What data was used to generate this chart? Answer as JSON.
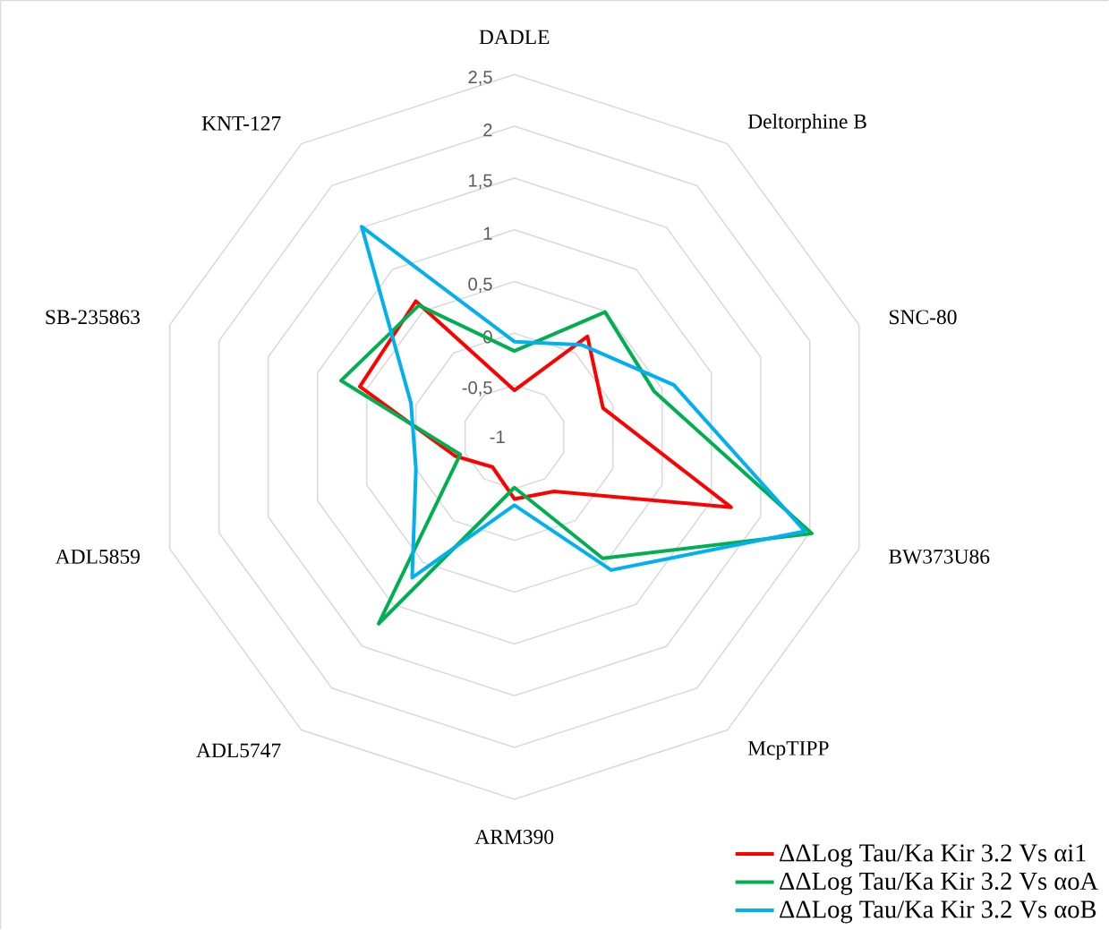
{
  "chart_data": {
    "type": "radar",
    "categories": [
      "DADLE",
      "Deltorphine B",
      "SNC-80",
      "BW373U86",
      "McpTIPP",
      "ARM390",
      "ADL5747",
      "ADL5859",
      "SB-235863",
      "KNT-127"
    ],
    "series": [
      {
        "name": "ΔΔLog Tau/Ka Kir 3.2 Vs αi1",
        "color": "#ff0000",
        "values": [
          -0.55,
          0.2,
          -0.1,
          1.2,
          -0.35,
          -0.4,
          -0.64,
          -0.4,
          0.57,
          0.62
        ]
      },
      {
        "name": "ΔΔLog Tau/Ka Kir 3.2 Vs αoA",
        "color": "#00b050",
        "values": [
          -0.17,
          0.49,
          0.42,
          2.02,
          0.45,
          -0.51,
          1.23,
          -0.45,
          0.76,
          0.57
        ]
      },
      {
        "name": "ΔΔLog Tau/Ka Kir 3.2 Vs αoB",
        "color": "#00b0f0",
        "values": [
          -0.08,
          0.1,
          0.62,
          1.95,
          0.59,
          -0.34,
          0.68,
          0.0,
          0.05,
          1.51
        ]
      }
    ],
    "ylim": [
      -1,
      2.5
    ],
    "yticks": [
      {
        "value": -1,
        "label": "-1"
      },
      {
        "value": -0.5,
        "label": "-0,5"
      },
      {
        "value": 0,
        "label": "0"
      },
      {
        "value": 0.5,
        "label": "0,5"
      },
      {
        "value": 1,
        "label": "1"
      },
      {
        "value": 1.5,
        "label": "1,5"
      },
      {
        "value": 2,
        "label": "2"
      },
      {
        "value": 2.5,
        "label": "2,5"
      }
    ],
    "grid": true,
    "legend": "bottom right",
    "marker": "none",
    "line_style": "solid"
  }
}
